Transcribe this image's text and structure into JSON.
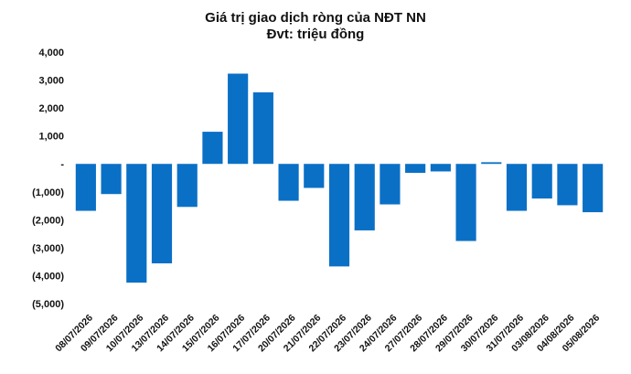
{
  "chart_data": {
    "type": "bar",
    "title": "Giá trị giao dịch ròng của NĐT NN",
    "subtitle": "Đvt: triệu đồng",
    "xlabel": "",
    "ylabel": "",
    "ylim": [
      -5000,
      4000
    ],
    "yticks": [
      4000,
      3000,
      2000,
      1000,
      0,
      -1000,
      -2000,
      -3000,
      -4000,
      -5000
    ],
    "ytick_labels": [
      "4,000",
      "3,000",
      "2,000",
      "1,000",
      "-",
      "(1,000)",
      "(2,000)",
      "(3,000)",
      "(4,000)",
      "(5,000)"
    ],
    "categories": [
      "08/07/2026",
      "09/07/2026",
      "10/07/2026",
      "13/07/2026",
      "14/07/2026",
      "15/07/2026",
      "16/07/2026",
      "17/07/2026",
      "20/07/2026",
      "21/07/2026",
      "22/07/2026",
      "23/07/2026",
      "24/07/2026",
      "27/07/2026",
      "28/07/2026",
      "29/07/2026",
      "30/07/2026",
      "31/07/2026",
      "03/08/2026",
      "04/08/2026",
      "05/08/2026"
    ],
    "values": [
      -1680,
      -1080,
      -4250,
      -3560,
      -1540,
      1150,
      3230,
      2560,
      -1320,
      -860,
      -3670,
      -2380,
      -1450,
      -320,
      -270,
      -2760,
      60,
      -1680,
      -1240,
      -1480,
      -1730
    ],
    "bar_color": "#0a70c6",
    "grid": false,
    "legend": "none"
  }
}
